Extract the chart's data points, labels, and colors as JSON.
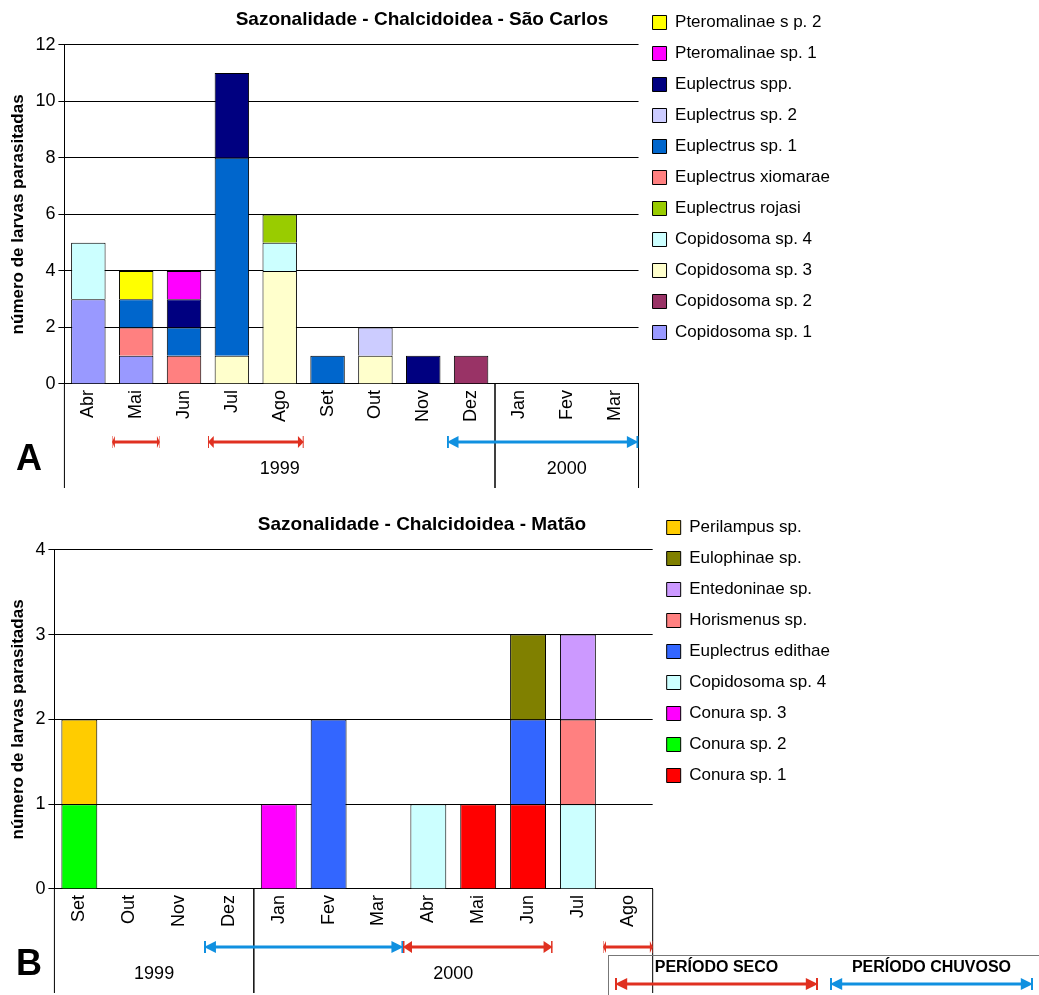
{
  "chart_data": [
    {
      "type": "bar",
      "title": "Sazonalidade - Chalcidoidea - São Carlos",
      "ylabel": "número de larvas parasitadas",
      "categories": [
        "Abr",
        "Mai",
        "Jun",
        "Jul",
        "Ago",
        "Set",
        "Out",
        "Nov",
        "Dez",
        "Jan",
        "Fev",
        "Mar"
      ],
      "stacked": true,
      "ylim": [
        0,
        12
      ],
      "yticks": [
        0,
        2,
        4,
        6,
        8,
        10,
        12
      ],
      "grid": "y",
      "legend": "right",
      "series": [
        {
          "name": "Copidosoma sp. 1",
          "color": "#9999ff",
          "values": [
            3,
            1,
            null,
            null,
            null,
            null,
            null,
            null,
            null,
            0,
            0,
            0
          ]
        },
        {
          "name": "Copidosoma sp. 2",
          "color": "#993366",
          "values": [
            null,
            null,
            null,
            null,
            null,
            null,
            null,
            null,
            1,
            null,
            null,
            null
          ]
        },
        {
          "name": "Copidosoma sp. 3",
          "color": "#ffffcc",
          "values": [
            null,
            null,
            null,
            1,
            4,
            null,
            1,
            null,
            null,
            null,
            null,
            null
          ]
        },
        {
          "name": "Copidosoma sp. 4",
          "color": "#ccffff",
          "values": [
            2,
            null,
            null,
            null,
            1,
            null,
            null,
            null,
            null,
            null,
            null,
            null
          ]
        },
        {
          "name": "Euplectrus rojasi",
          "color": "#99cc00",
          "values": [
            null,
            null,
            null,
            null,
            1,
            null,
            null,
            null,
            null,
            null,
            null,
            null
          ]
        },
        {
          "name": "Euplectrus xiomarae",
          "color": "#ff8080",
          "values": [
            null,
            1,
            1,
            null,
            null,
            null,
            null,
            null,
            null,
            null,
            null,
            null
          ]
        },
        {
          "name": "Euplectrus sp. 1",
          "color": "#0066cc",
          "values": [
            null,
            1,
            1,
            7,
            null,
            1,
            null,
            null,
            null,
            null,
            null,
            null
          ]
        },
        {
          "name": "Euplectrus sp. 2",
          "color": "#ccccff",
          "values": [
            null,
            null,
            null,
            null,
            null,
            null,
            1,
            null,
            null,
            null,
            null,
            null
          ]
        },
        {
          "name": "Euplectrus spp.",
          "color": "#000080",
          "values": [
            null,
            null,
            1,
            3,
            null,
            null,
            null,
            1,
            null,
            null,
            null,
            null
          ]
        },
        {
          "name": "Pteromalinae sp. 1",
          "color": "#ff00ff",
          "values": [
            null,
            null,
            1,
            null,
            null,
            null,
            null,
            null,
            null,
            null,
            null,
            null
          ]
        },
        {
          "name": "Pteromalinae s p. 2",
          "color": "#ffff00",
          "values": [
            null,
            1,
            null,
            null,
            null,
            null,
            null,
            null,
            null,
            null,
            null,
            null
          ]
        }
      ],
      "annotations": [
        "A",
        "1999",
        "2000"
      ]
    },
    {
      "type": "bar",
      "title": "Sazonalidade - Chalcidoidea - Matão",
      "ylabel": "número de larvas parasitadas",
      "categories": [
        "Set",
        "Out",
        "Nov",
        "Dez",
        "Jan",
        "Fev",
        "Mar",
        "Abr",
        "Mai",
        "Jun",
        "Jul",
        "Ago"
      ],
      "stacked": true,
      "ylim": [
        0,
        4
      ],
      "yticks": [
        0,
        1,
        2,
        3,
        4
      ],
      "grid": "y",
      "legend": "right",
      "series": [
        {
          "name": "Conura sp. 1",
          "color": "#ff0000",
          "values": [
            null,
            0,
            0,
            0,
            null,
            null,
            0,
            null,
            1,
            1,
            null,
            0
          ]
        },
        {
          "name": "Conura sp. 2",
          "color": "#00ff00",
          "values": [
            1,
            null,
            null,
            null,
            null,
            null,
            null,
            null,
            null,
            null,
            null,
            null
          ]
        },
        {
          "name": "Conura sp. 3",
          "color": "#ff00ff",
          "values": [
            null,
            null,
            null,
            null,
            1,
            null,
            null,
            null,
            null,
            null,
            null,
            null
          ]
        },
        {
          "name": "Copidosoma sp. 4",
          "color": "#ccffff",
          "values": [
            null,
            null,
            null,
            null,
            null,
            null,
            null,
            1,
            null,
            null,
            1,
            null
          ]
        },
        {
          "name": "Euplectrus edithae",
          "color": "#3366ff",
          "values": [
            null,
            null,
            null,
            null,
            null,
            2,
            null,
            null,
            null,
            1,
            null,
            null
          ]
        },
        {
          "name": "Horismenus sp.",
          "color": "#ff8080",
          "values": [
            null,
            null,
            null,
            null,
            null,
            null,
            null,
            null,
            null,
            null,
            1,
            null
          ]
        },
        {
          "name": "Entedoninae sp.",
          "color": "#cc99ff",
          "values": [
            null,
            null,
            null,
            null,
            null,
            null,
            null,
            null,
            null,
            null,
            1,
            null
          ]
        },
        {
          "name": "Eulophinae sp.",
          "color": "#808000",
          "values": [
            null,
            null,
            null,
            null,
            null,
            null,
            null,
            null,
            null,
            1,
            null,
            null
          ]
        },
        {
          "name": "Perilampus sp.",
          "color": "#ffcc00",
          "values": [
            1,
            null,
            null,
            null,
            null,
            null,
            null,
            null,
            null,
            null,
            null,
            null
          ]
        }
      ],
      "annotations": [
        "B",
        "1999",
        "2000",
        "PERÍODO SECO",
        "PERÍODO CHUVOSO"
      ]
    }
  ]
}
